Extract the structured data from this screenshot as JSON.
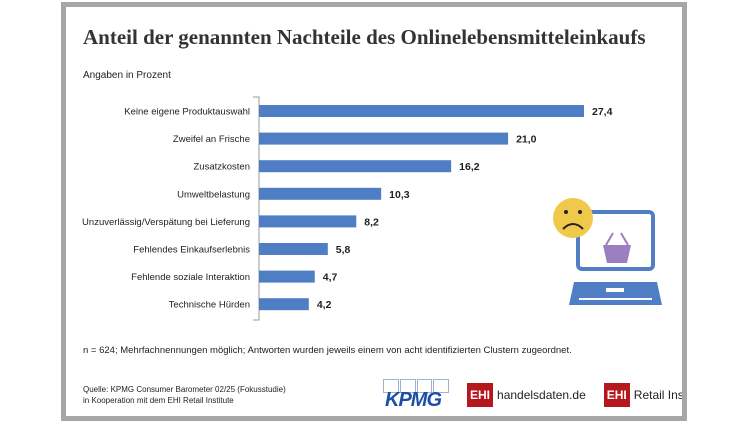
{
  "chart_data": {
    "type": "bar",
    "orientation": "horizontal",
    "title": "Anteil der genannten Nachteile des Onlinelebensmitteleinkaufs",
    "subtitle": "Angaben in Prozent",
    "categories": [
      "Keine eigene Produktauswahl",
      "Zweifel an Frische",
      "Zusatzkosten",
      "Umweltbelastung",
      "Unzuverlässig/Verspätung bei Lieferung",
      "Fehlendes Einkaufserlebnis",
      "Fehlende soziale Interaktion",
      "Technische Hürden"
    ],
    "values": [
      27.4,
      21.0,
      16.2,
      10.3,
      8.2,
      5.8,
      4.7,
      4.2
    ],
    "value_labels": [
      "27,4",
      "21,0",
      "16,2",
      "10,3",
      "8,2",
      "5,8",
      "4,7",
      "4,2"
    ],
    "xlim": [
      0,
      27.4
    ],
    "grid": false,
    "bar_color": "#4f7ec4"
  },
  "note": "n = 624; Mehrfachnennungen möglich; Antworten wurden jeweils einem von acht identifizierten Clustern zugeordnet.",
  "source": {
    "line1": "Quelle: KPMG Consumer Barometer 02/25 (Fokusstudie)",
    "line2": "in Kooperation mit dem EHI Retail Institute"
  },
  "logos": {
    "kpmg": "KPMG",
    "ehi_badge": "EHI",
    "handelsdaten": "handelsdaten.de",
    "retail_institute": "Retail Institute"
  },
  "icons": {
    "sad_face_color": "#f0c94a",
    "laptop_color": "#4f7ec4",
    "basket_color": "#9b7fc0"
  }
}
